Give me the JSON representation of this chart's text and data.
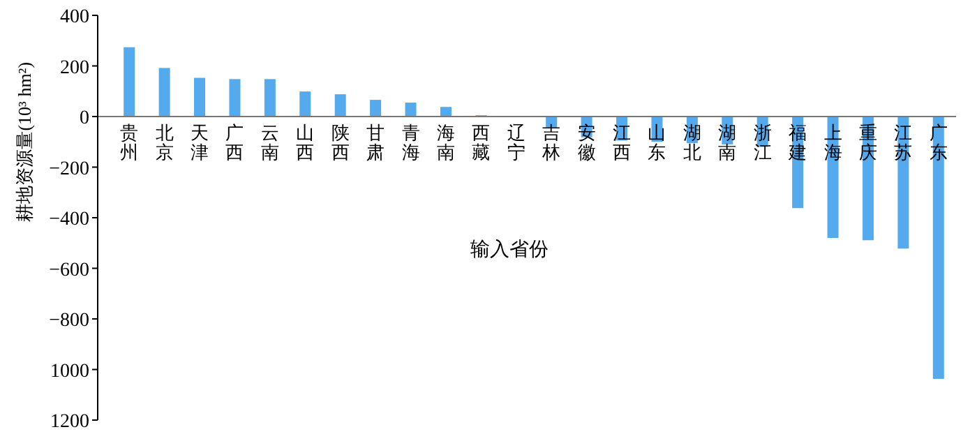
{
  "chart_data": {
    "type": "bar",
    "xlabel": "输入省份",
    "ylabel": "耕地资源量(10³ hm²)",
    "categories": [
      "贵州",
      "北京",
      "天津",
      "广西",
      "云南",
      "山西",
      "陕西",
      "甘肃",
      "青海",
      "海南",
      "西藏",
      "辽宁",
      "吉林",
      "安徽",
      "江西",
      "山东",
      "湖北",
      "湖南",
      "浙江",
      "福建",
      "上海",
      "重庆",
      "江苏",
      "广东"
    ],
    "values": [
      274,
      192,
      153,
      148,
      148,
      99,
      88,
      66,
      55,
      38,
      5,
      0,
      -44,
      -82,
      -95,
      -100,
      -105,
      -110,
      -120,
      -362,
      -480,
      -489,
      -522,
      -1037
    ],
    "color": "#55aaee",
    "ylim": [
      -1200,
      400
    ],
    "yticks": [
      400,
      200,
      0,
      -200,
      -400,
      -600,
      -800,
      {
        "value": -1000,
        "label": "1000"
      },
      {
        "value": -1200,
        "label": "1200"
      }
    ],
    "grid": false
  }
}
